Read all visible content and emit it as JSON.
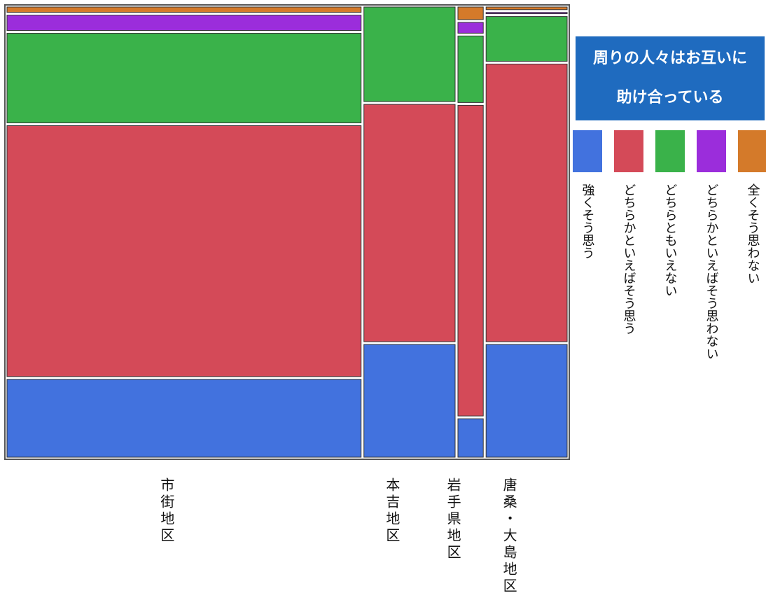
{
  "chart_data": {
    "type": "mosaic",
    "legend_title": "周りの人々はお互いに助け合っている",
    "categories": [
      "市街地区",
      "本吉地区",
      "岩手県地区",
      "唐桑・大島地区"
    ],
    "widths": [
      63.4,
      16.7,
      5.0,
      14.9
    ],
    "ylim": [
      0,
      100
    ],
    "series": [
      {
        "name": "強くそう思う",
        "color": "#4272de",
        "values": [
          17.8,
          25.5,
          9.1,
          25.5
        ]
      },
      {
        "name": "どちらかといえばそう思う",
        "color": "#d44a58",
        "values": [
          56.0,
          53.0,
          69.2,
          61.9
        ]
      },
      {
        "name": "どちらともいえない",
        "color": "#3ab24a",
        "values": [
          20.4,
          21.5,
          15.3,
          10.5
        ]
      },
      {
        "name": "どちらかといえばそう思わない",
        "color": "#9b2ddb",
        "values": [
          4.0,
          0,
          3.0,
          0.9
        ]
      },
      {
        "name": "全くそう思わない",
        "color": "#d47a2a",
        "values": [
          1.8,
          0,
          3.4,
          1.2
        ]
      }
    ]
  }
}
